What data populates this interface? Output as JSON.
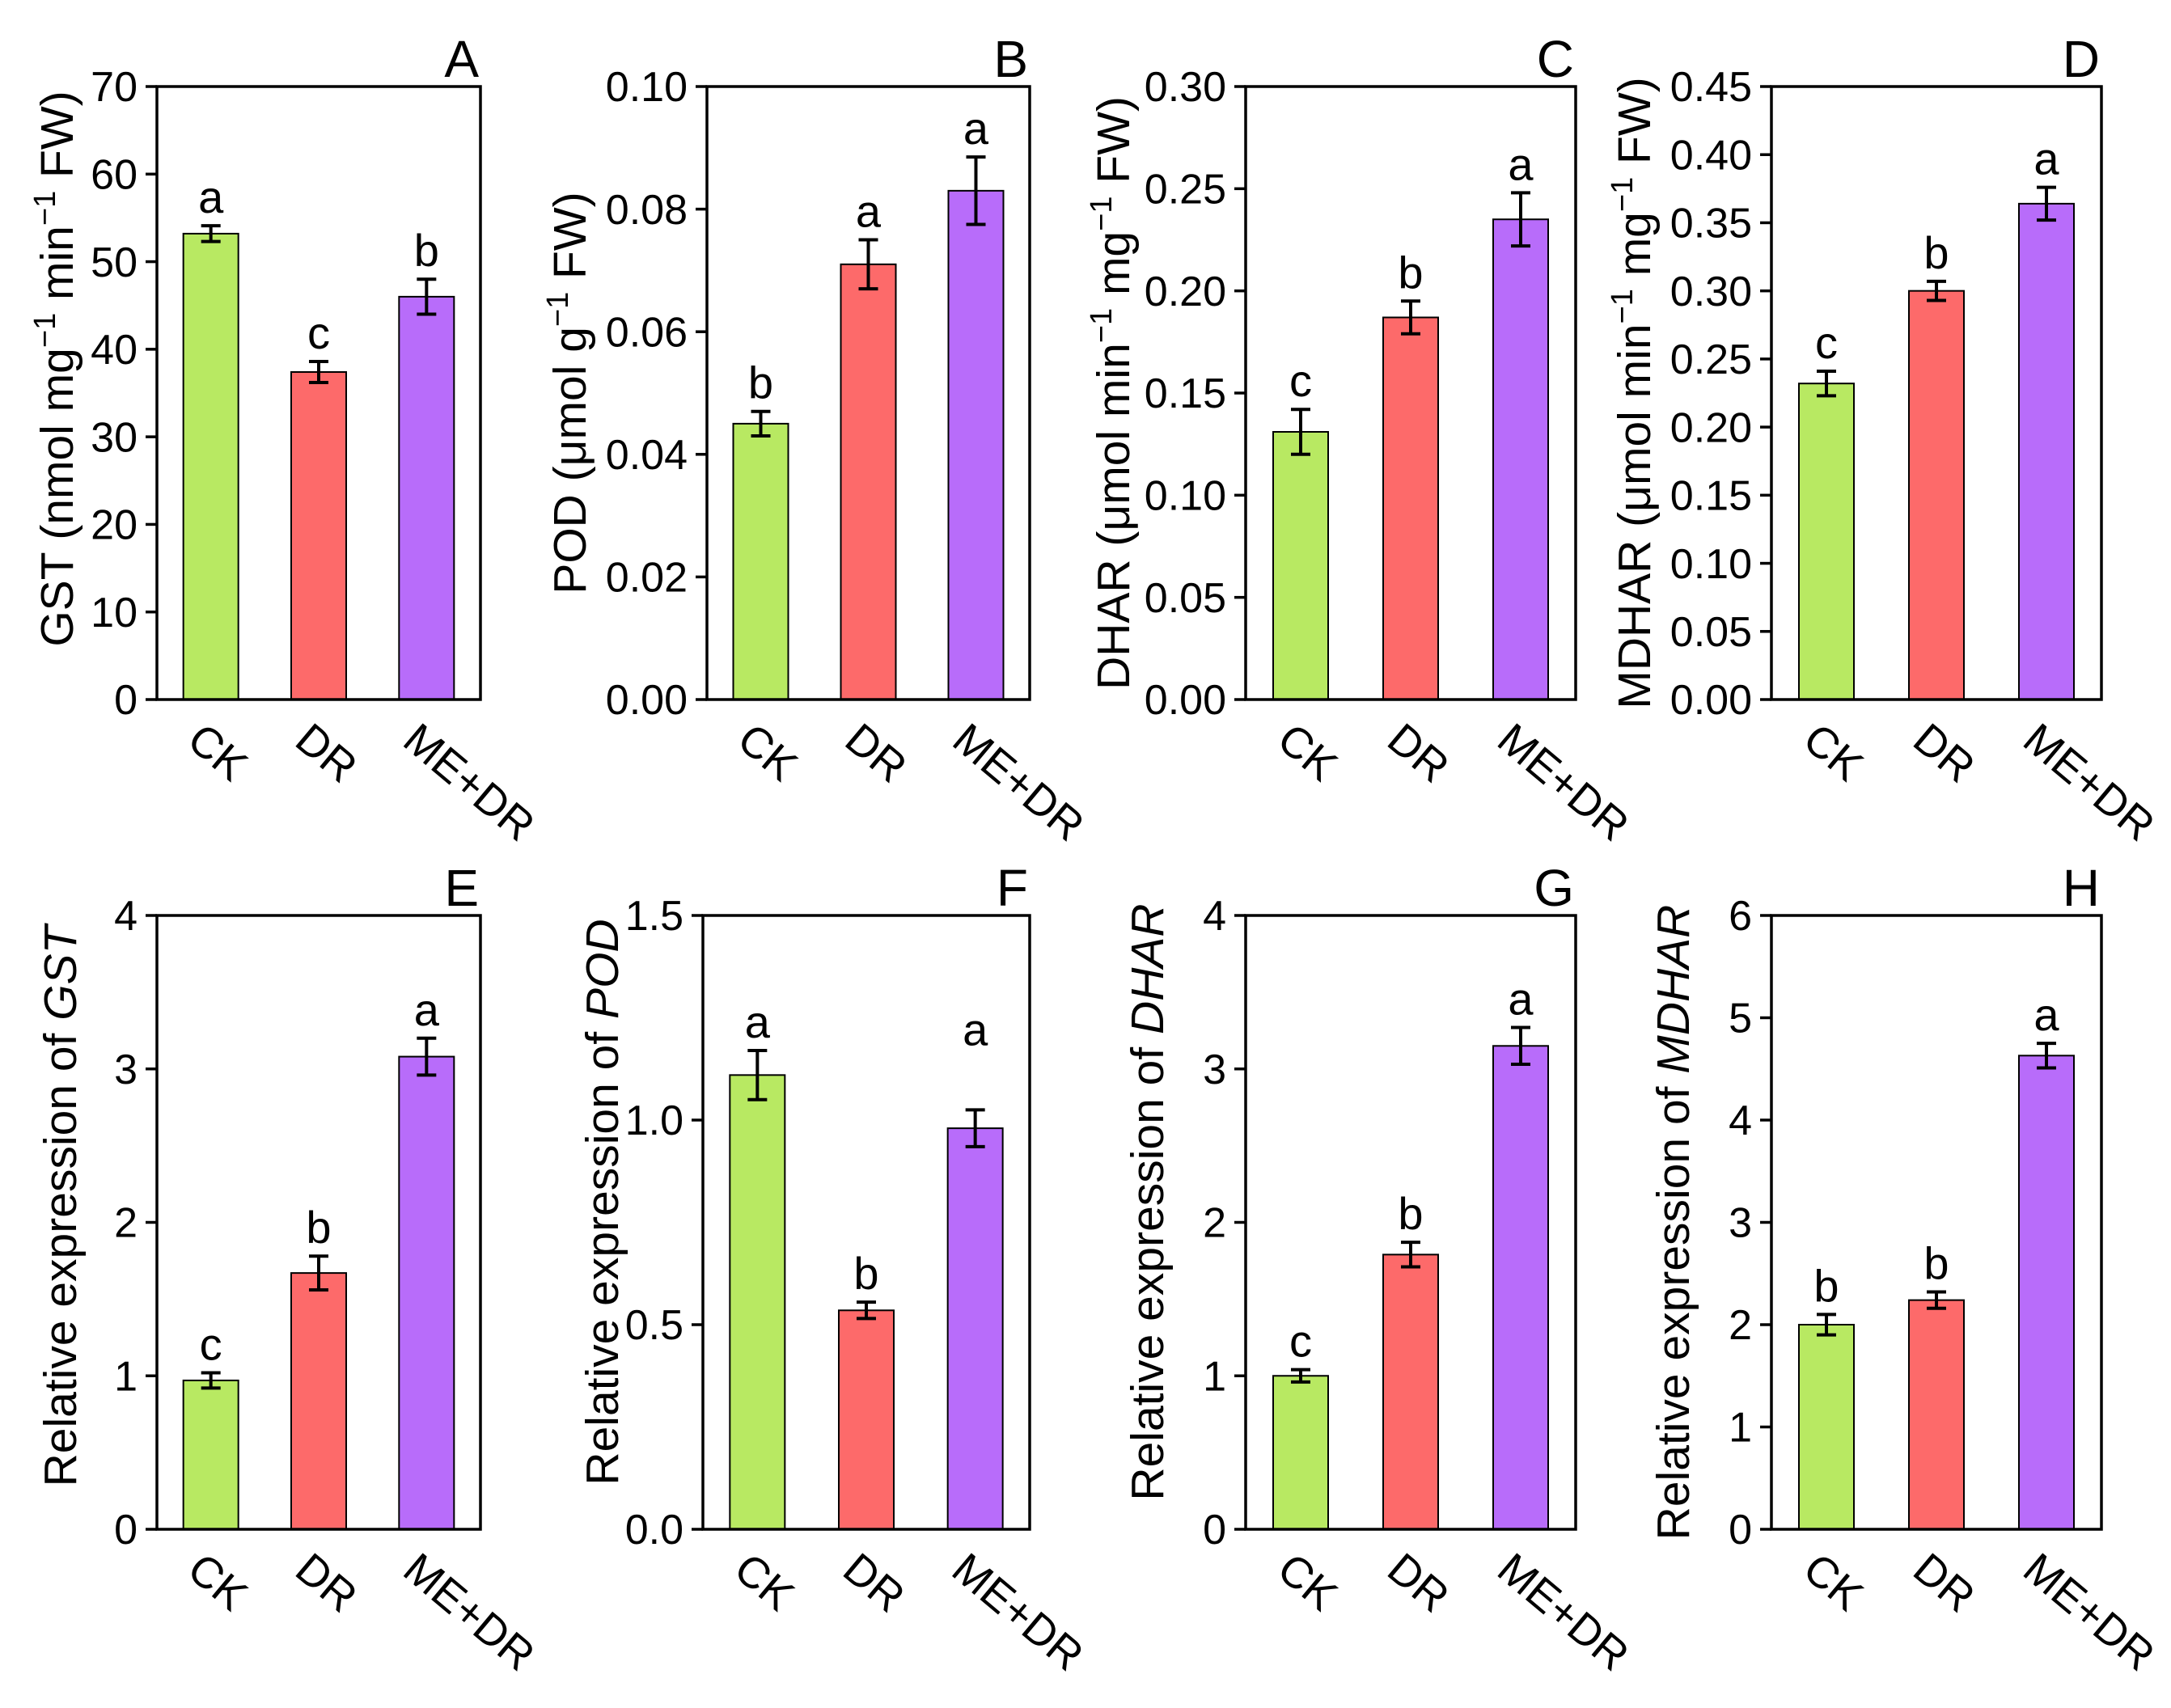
{
  "chart_data": [
    {
      "panel": "A",
      "type": "bar",
      "categories": [
        "CK",
        "DR",
        "ME+DR"
      ],
      "values": [
        53.2,
        37.4,
        46.0
      ],
      "errors": [
        0.9,
        1.2,
        2.0
      ],
      "significance": [
        "a",
        "c",
        "b"
      ],
      "ylabel": [
        {
          "t": "GST (nmol mg"
        },
        {
          "t": "−1",
          "sup": true
        },
        {
          "t": " min"
        },
        {
          "t": "−1",
          "sup": true
        },
        {
          "t": " FW)"
        }
      ],
      "ylim": [
        0,
        70
      ],
      "yticks": [
        "0",
        "10",
        "20",
        "30",
        "40",
        "50",
        "60",
        "70"
      ],
      "colors": [
        "#b8e962",
        "#fd6a6a",
        "#b86cfa"
      ]
    },
    {
      "panel": "B",
      "type": "bar",
      "categories": [
        "CK",
        "DR",
        "ME+DR"
      ],
      "values": [
        0.045,
        0.071,
        0.083
      ],
      "errors": [
        0.002,
        0.004,
        0.0055
      ],
      "significance": [
        "b",
        "a",
        "a"
      ],
      "ylabel": [
        {
          "t": "POD (μmol g"
        },
        {
          "t": "−1",
          "sup": true
        },
        {
          "t": " FW)"
        }
      ],
      "ylim": [
        0,
        0.1
      ],
      "yticks": [
        "0.00",
        "0.02",
        "0.04",
        "0.06",
        "0.08",
        "0.10"
      ],
      "colors": [
        "#b8e962",
        "#fd6a6a",
        "#b86cfa"
      ]
    },
    {
      "panel": "C",
      "type": "bar",
      "categories": [
        "CK",
        "DR",
        "ME+DR"
      ],
      "values": [
        0.131,
        0.187,
        0.235
      ],
      "errors": [
        0.011,
        0.008,
        0.013
      ],
      "significance": [
        "c",
        "b",
        "a"
      ],
      "ylabel": [
        {
          "t": "DHAR (μmol min"
        },
        {
          "t": "−1",
          "sup": true
        },
        {
          "t": " mg"
        },
        {
          "t": "−1",
          "sup": true
        },
        {
          "t": " FW)"
        }
      ],
      "ylim": [
        0,
        0.3
      ],
      "yticks": [
        "0.00",
        "0.05",
        "0.10",
        "0.15",
        "0.20",
        "0.25",
        "0.30"
      ],
      "colors": [
        "#b8e962",
        "#fd6a6a",
        "#b86cfa"
      ]
    },
    {
      "panel": "D",
      "type": "bar",
      "categories": [
        "CK",
        "DR",
        "ME+DR"
      ],
      "values": [
        0.232,
        0.3,
        0.364
      ],
      "errors": [
        0.009,
        0.007,
        0.012
      ],
      "significance": [
        "c",
        "b",
        "a"
      ],
      "ylabel": [
        {
          "t": "MDHAR (μmol min"
        },
        {
          "t": "−1",
          "sup": true
        },
        {
          "t": " mg"
        },
        {
          "t": "−1",
          "sup": true
        },
        {
          "t": " FW)"
        }
      ],
      "ylim": [
        0,
        0.45
      ],
      "yticks": [
        "0.00",
        "0.05",
        "0.10",
        "0.15",
        "0.20",
        "0.25",
        "0.30",
        "0.35",
        "0.40",
        "0.45"
      ],
      "colors": [
        "#b8e962",
        "#fd6a6a",
        "#b86cfa"
      ]
    },
    {
      "panel": "E",
      "type": "bar",
      "categories": [
        "CK",
        "DR",
        "ME+DR"
      ],
      "values": [
        0.97,
        1.67,
        3.08
      ],
      "errors": [
        0.05,
        0.11,
        0.12
      ],
      "significance": [
        "c",
        "b",
        "a"
      ],
      "ylabel": [
        {
          "t": "Relative expression of "
        },
        {
          "t": "GST",
          "italic": true
        }
      ],
      "ylim": [
        0,
        4
      ],
      "yticks": [
        "0",
        "1",
        "2",
        "3",
        "4"
      ],
      "colors": [
        "#b8e962",
        "#fd6a6a",
        "#b86cfa"
      ]
    },
    {
      "panel": "F",
      "type": "bar",
      "categories": [
        "CK",
        "DR",
        "ME+DR"
      ],
      "values": [
        1.11,
        0.535,
        0.98
      ],
      "errors": [
        0.06,
        0.02,
        0.045
      ],
      "significance": [
        "a",
        "b",
        "a"
      ],
      "ylabel": [
        {
          "t": "Relative expression of "
        },
        {
          "t": "POD",
          "italic": true
        }
      ],
      "ylim": [
        0,
        1.5
      ],
      "yticks": [
        "0.0",
        "0.5",
        "1.0",
        "1.5"
      ],
      "colors": [
        "#b8e962",
        "#fd6a6a",
        "#b86cfa"
      ]
    },
    {
      "panel": "G",
      "type": "bar",
      "categories": [
        "CK",
        "DR",
        "ME+DR"
      ],
      "values": [
        1.0,
        1.79,
        3.15
      ],
      "errors": [
        0.04,
        0.08,
        0.12
      ],
      "significance": [
        "c",
        "b",
        "a"
      ],
      "ylabel": [
        {
          "t": "Relative expression of "
        },
        {
          "t": "DHAR",
          "italic": true
        }
      ],
      "ylim": [
        0,
        4
      ],
      "yticks": [
        "0",
        "1",
        "2",
        "3",
        "4"
      ],
      "colors": [
        "#b8e962",
        "#fd6a6a",
        "#b86cfa"
      ]
    },
    {
      "panel": "H",
      "type": "bar",
      "categories": [
        "CK",
        "DR",
        "ME+DR"
      ],
      "values": [
        2.0,
        2.24,
        4.63
      ],
      "errors": [
        0.1,
        0.08,
        0.12
      ],
      "significance": [
        "b",
        "b",
        "a"
      ],
      "ylabel": [
        {
          "t": "Relative expression of "
        },
        {
          "t": "MDHAR",
          "italic": true
        }
      ],
      "ylim": [
        0,
        6
      ],
      "yticks": [
        "0",
        "1",
        "2",
        "3",
        "4",
        "5",
        "6"
      ],
      "colors": [
        "#b8e962",
        "#fd6a6a",
        "#b86cfa"
      ]
    }
  ]
}
